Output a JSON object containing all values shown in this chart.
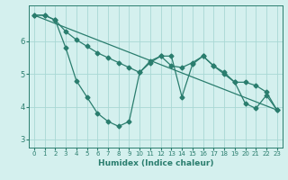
{
  "title": "",
  "xlabel": "Humidex (Indice chaleur)",
  "ylabel": "",
  "bg_color": "#d4f0ee",
  "grid_color": "#a8d8d4",
  "line_color": "#2a7d6e",
  "tick_color": "#2a7d6e",
  "xlim": [
    -0.5,
    23.5
  ],
  "ylim": [
    2.75,
    7.1
  ],
  "yticks": [
    3,
    4,
    5,
    6
  ],
  "xticks": [
    0,
    1,
    2,
    3,
    4,
    5,
    6,
    7,
    8,
    9,
    10,
    11,
    12,
    13,
    14,
    15,
    16,
    17,
    18,
    19,
    20,
    21,
    22,
    23
  ],
  "line1_x": [
    0,
    1,
    2,
    3,
    4,
    5,
    6,
    7,
    8,
    9,
    10,
    11,
    12,
    13,
    14,
    15,
    16,
    17,
    18,
    19,
    20,
    21,
    22,
    23
  ],
  "line1_y": [
    6.8,
    6.8,
    6.65,
    5.8,
    4.8,
    4.3,
    3.8,
    3.55,
    3.4,
    3.55,
    5.05,
    5.4,
    5.55,
    5.55,
    4.3,
    5.3,
    5.55,
    5.25,
    5.0,
    4.75,
    4.1,
    3.95,
    4.35,
    3.9
  ],
  "line2_x": [
    0,
    1,
    2,
    3,
    4,
    5,
    6,
    7,
    8,
    9,
    10,
    11,
    12,
    13,
    14,
    15,
    16,
    17,
    18,
    19,
    20,
    21,
    22,
    23
  ],
  "line2_y": [
    6.8,
    6.8,
    6.65,
    6.3,
    6.05,
    5.85,
    5.65,
    5.5,
    5.35,
    5.2,
    5.05,
    5.35,
    5.55,
    5.25,
    5.2,
    5.35,
    5.55,
    5.25,
    5.05,
    4.75,
    4.75,
    4.65,
    4.45,
    3.9
  ],
  "line3_x": [
    0,
    23
  ],
  "line3_y": [
    6.8,
    3.9
  ]
}
